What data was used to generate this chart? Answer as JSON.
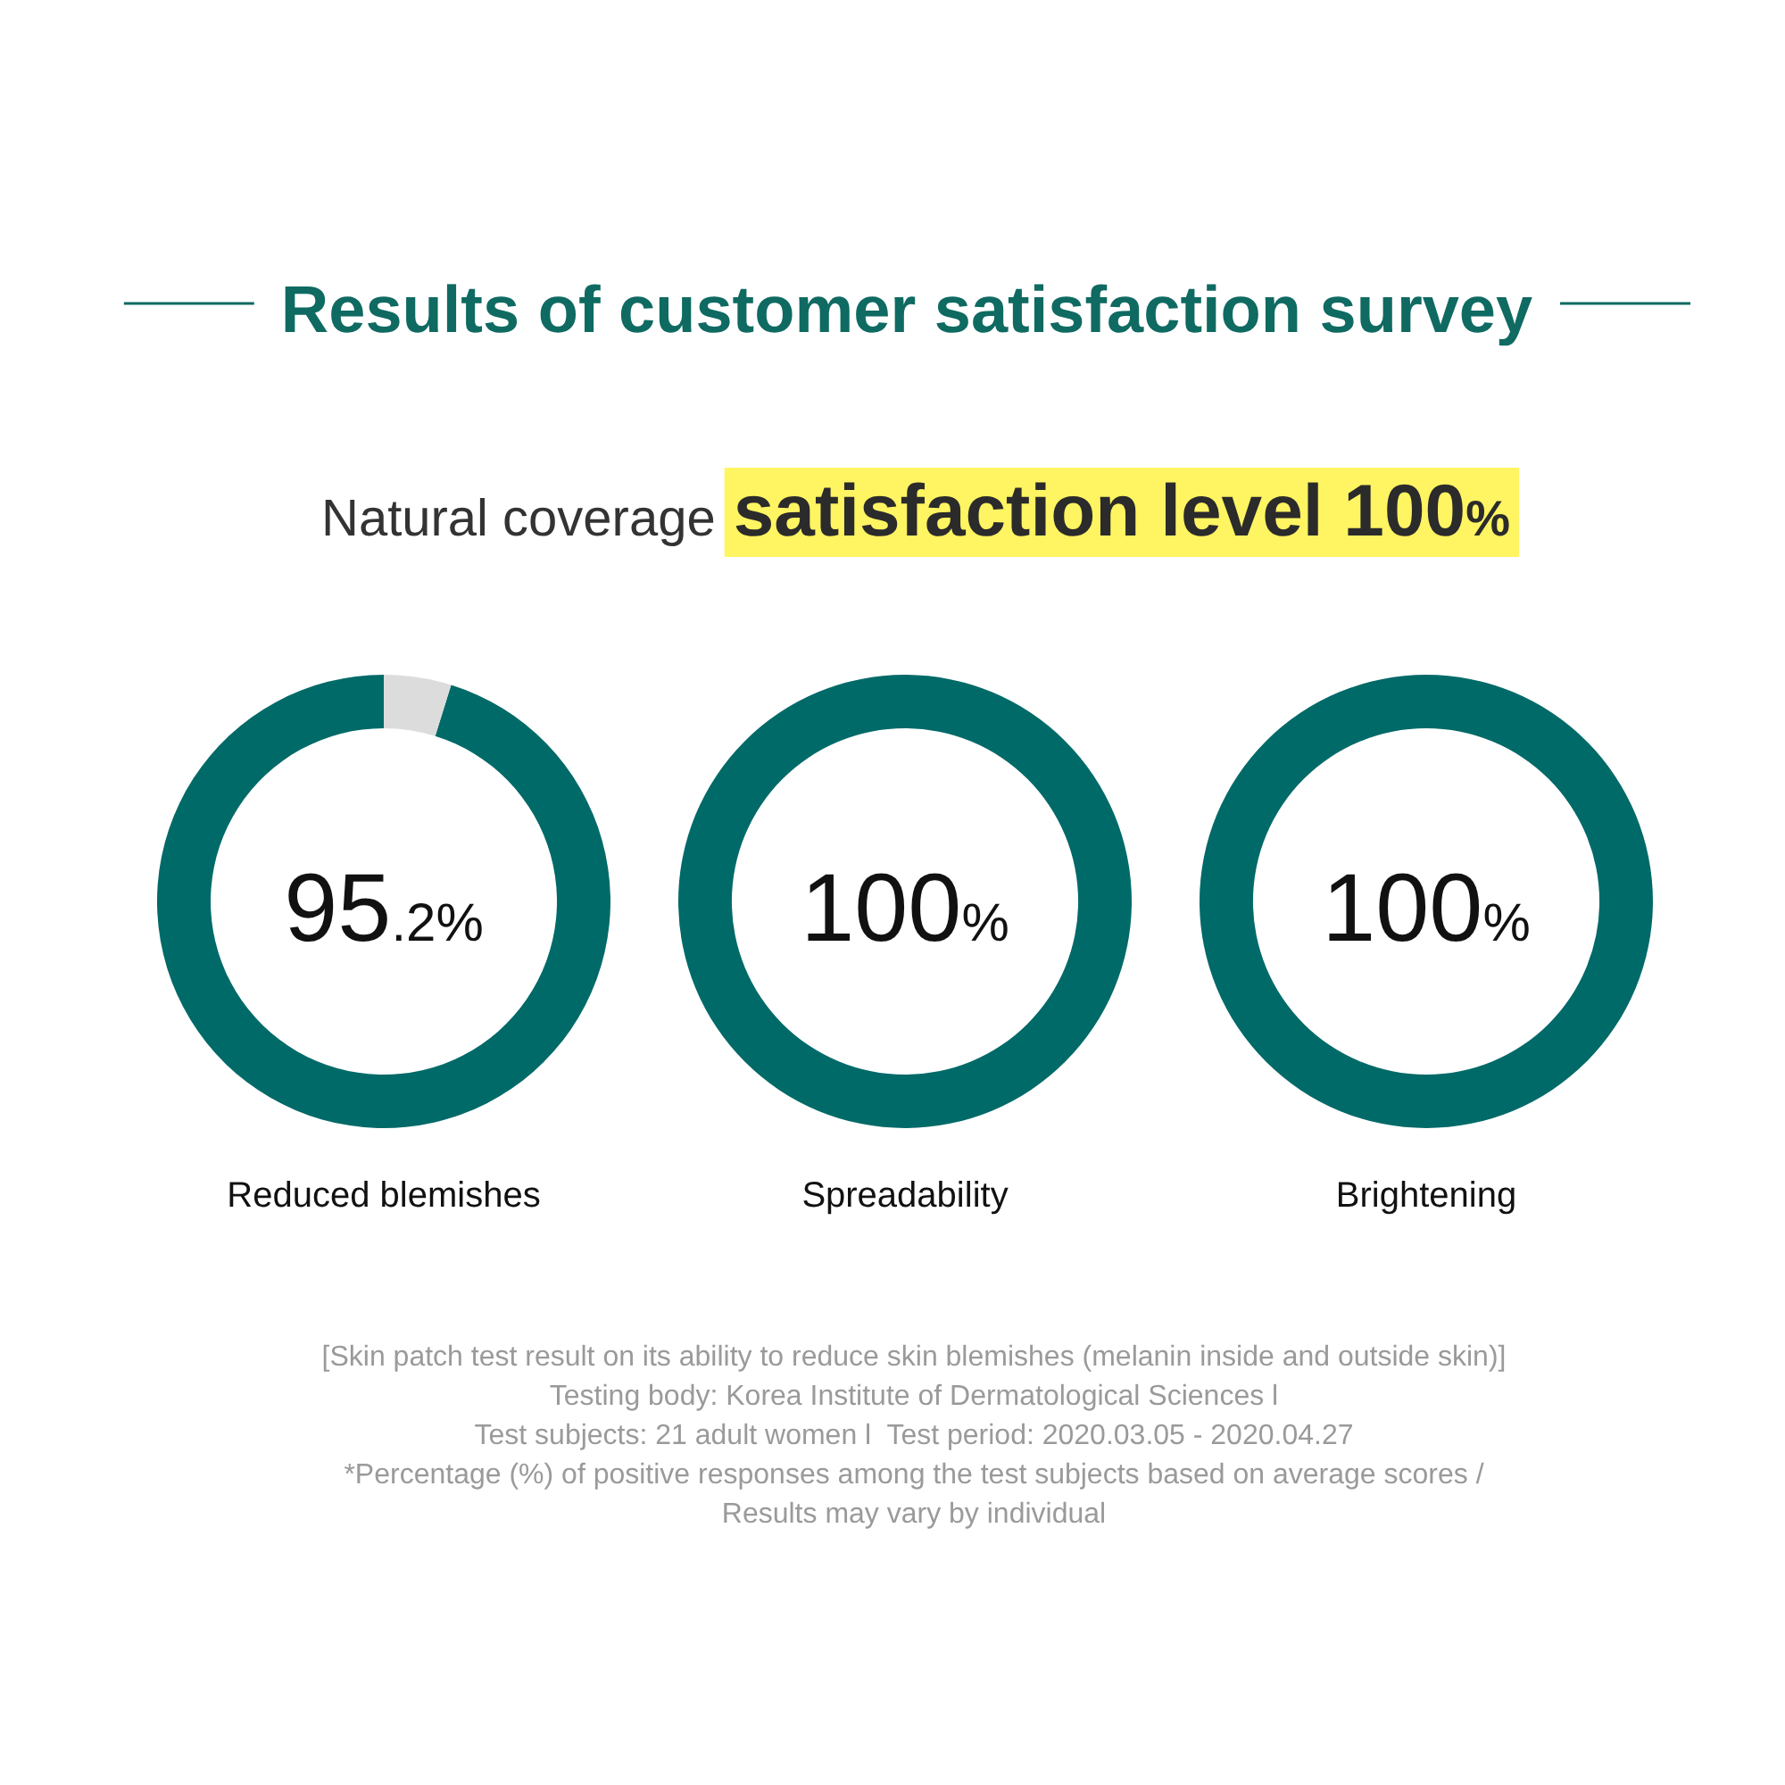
{
  "chart_data": [
    {
      "type": "other",
      "title": "Results of customer satisfaction survey",
      "subtitle": "Natural coverage satisfaction level 100%"
    },
    {
      "type": "donut",
      "title": "Reduced blemishes",
      "categories": [
        null,
        null
      ],
      "values": [
        95.2,
        4.8
      ],
      "colors": [
        "#006a68",
        "#dcdcdc"
      ],
      "value_labels": [
        "95.2%",
        null
      ]
    },
    {
      "type": "donut",
      "title": "Spreadability",
      "categories": [
        null
      ],
      "values": [
        100
      ],
      "colors": [
        "#006a68"
      ],
      "value_labels": [
        "100%"
      ]
    },
    {
      "type": "donut",
      "title": "Brightening",
      "categories": [
        null
      ],
      "values": [
        100
      ],
      "colors": [
        "#006a68"
      ],
      "value_labels": [
        "100%"
      ]
    },
    {
      "type": "other",
      "annotations": [
        "[Skin patch test result on its ability to reduce skin blemishes (melanin inside and outside skin)]",
        "Testing body: Korea Institute of Dermatological Sciences l",
        "Test subjects: 21 adult women l  Test period: 2020.03.05 - 2020.04.27",
        "*Percentage (%) of positive responses among the test subjects based on average scores / Results may vary by individual"
      ]
    }
  ]
}
